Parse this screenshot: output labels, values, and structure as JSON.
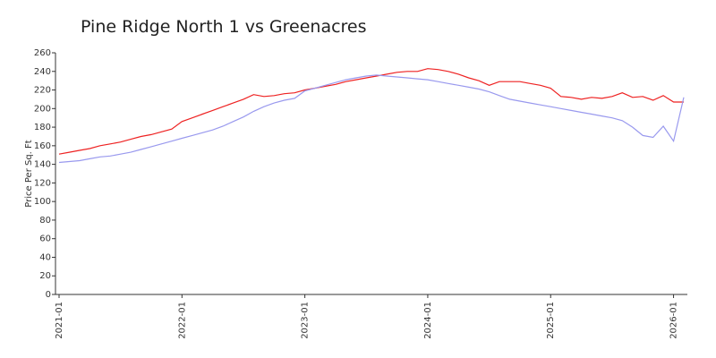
{
  "chart_data": {
    "type": "line",
    "title": "Pine Ridge North 1 vs Greenacres",
    "y_label": "Price Per Sq. Ft",
    "x": [
      "2021-01",
      "2021-02",
      "2021-03",
      "2021-04",
      "2021-05",
      "2021-06",
      "2021-07",
      "2021-08",
      "2021-09",
      "2021-10",
      "2021-11",
      "2021-12",
      "2022-01",
      "2022-02",
      "2022-03",
      "2022-04",
      "2022-05",
      "2022-06",
      "2022-07",
      "2022-08",
      "2022-09",
      "2022-10",
      "2022-11",
      "2022-12",
      "2023-01",
      "2023-02",
      "2023-03",
      "2023-04",
      "2023-05",
      "2023-06",
      "2023-07",
      "2023-08",
      "2023-09",
      "2023-10",
      "2023-11",
      "2023-12",
      "2024-01",
      "2024-02",
      "2024-03",
      "2024-04",
      "2024-05",
      "2024-06",
      "2024-07",
      "2024-08",
      "2024-09",
      "2024-10",
      "2024-11",
      "2024-12",
      "2025-01",
      "2025-02",
      "2025-03",
      "2025-04",
      "2025-05",
      "2025-06",
      "2025-07",
      "2025-08",
      "2025-09",
      "2025-10",
      "2025-11",
      "2025-12",
      "2026-01",
      "2026-02"
    ],
    "series": [
      {
        "color": "#ee2222",
        "values": [
          151,
          153,
          155,
          157,
          160,
          162,
          164,
          167,
          170,
          172,
          175,
          178,
          186,
          190,
          194,
          198,
          202,
          206,
          210,
          215,
          213,
          214,
          216,
          217,
          220,
          222,
          224,
          226,
          229,
          231,
          233,
          235,
          237,
          239,
          240,
          240,
          243,
          242,
          240,
          237,
          233,
          230,
          225,
          229,
          229,
          229,
          227,
          225,
          222,
          213,
          212,
          210,
          212,
          211,
          213,
          217,
          212,
          213,
          209,
          214,
          207,
          207
        ]
      },
      {
        "color": "#9999ee",
        "values": [
          142,
          143,
          144,
          146,
          148,
          149,
          151,
          153,
          156,
          159,
          162,
          165,
          168,
          171,
          174,
          177,
          181,
          186,
          191,
          197,
          202,
          206,
          209,
          211,
          219,
          222,
          225,
          228,
          231,
          233,
          235,
          236,
          235,
          234,
          233,
          232,
          231,
          229,
          227,
          225,
          223,
          221,
          218,
          214,
          210,
          208,
          206,
          204,
          202,
          200,
          198,
          196,
          194,
          192,
          190,
          187,
          180,
          171,
          169,
          181,
          165,
          212
        ]
      }
    ],
    "xticks": [
      "2021-01",
      "2022-01",
      "2023-01",
      "2024-01",
      "2025-01",
      "2026-01"
    ],
    "ylim": [
      0,
      260
    ],
    "yticks": [
      0,
      20,
      40,
      60,
      80,
      100,
      120,
      140,
      160,
      180,
      200,
      220,
      240,
      260
    ],
    "grid": false
  }
}
